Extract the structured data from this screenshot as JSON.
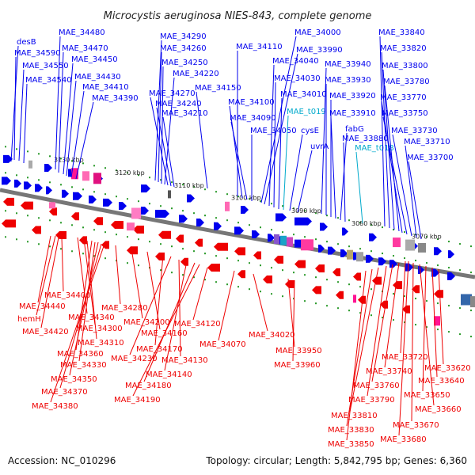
{
  "title": "Microcystis aeruginosa NIES-843, complete genome",
  "accession": "Accession: NC_010296",
  "topology": "Topology: circular; Length: 5,842,795 bp; Genes: 6,360",
  "colors": {
    "forward": "#0000ee",
    "reverse": "#ee0000",
    "rna": "#00aacc",
    "backbone": "#777777",
    "dots": "#2a9a2a"
  },
  "scale_ticks": [
    "3130 kbp",
    "3120 kbp",
    "3110 kbp",
    "3100 kbp",
    "3090 kbp",
    "3080 kbp",
    "3070 kbp"
  ],
  "forward_labels": [
    {
      "text": "desB",
      "color": "forward"
    },
    {
      "text": "MAE_34590",
      "color": "forward"
    },
    {
      "text": "MAE_34550",
      "color": "forward"
    },
    {
      "text": "MAE_34540",
      "color": "forward"
    },
    {
      "text": "MAE_34480",
      "color": "forward"
    },
    {
      "text": "MAE_34470",
      "color": "forward"
    },
    {
      "text": "MAE_34450",
      "color": "forward"
    },
    {
      "text": "MAE_34430",
      "color": "forward"
    },
    {
      "text": "MAE_34410",
      "color": "forward"
    },
    {
      "text": "MAE_34390",
      "color": "forward"
    },
    {
      "text": "MAE_34290",
      "color": "forward"
    },
    {
      "text": "MAE_34260",
      "color": "forward"
    },
    {
      "text": "MAE_34250",
      "color": "forward"
    },
    {
      "text": "MAE_34220",
      "color": "forward"
    },
    {
      "text": "MAE_34270",
      "color": "forward"
    },
    {
      "text": "MAE_34240",
      "color": "forward"
    },
    {
      "text": "MAE_34210",
      "color": "forward"
    },
    {
      "text": "MAE_34150",
      "color": "forward"
    },
    {
      "text": "MAE_34110",
      "color": "forward"
    },
    {
      "text": "MAE_34100",
      "color": "forward"
    },
    {
      "text": "MAE_34090",
      "color": "forward"
    },
    {
      "text": "MAE_34050",
      "color": "forward"
    },
    {
      "text": "MAE_34000",
      "color": "forward"
    },
    {
      "text": "MAE_33990",
      "color": "forward"
    },
    {
      "text": "MAE_34040",
      "color": "forward"
    },
    {
      "text": "MAE_34030",
      "color": "forward"
    },
    {
      "text": "MAE_34010",
      "color": "forward"
    },
    {
      "text": "MAE_t019",
      "color": "rna"
    },
    {
      "text": "cysE",
      "color": "forward"
    },
    {
      "text": "uvrA",
      "color": "forward"
    },
    {
      "text": "MAE_33940",
      "color": "forward"
    },
    {
      "text": "MAE_33930",
      "color": "forward"
    },
    {
      "text": "MAE_33920",
      "color": "forward"
    },
    {
      "text": "MAE_33910",
      "color": "forward"
    },
    {
      "text": "fabG",
      "color": "forward"
    },
    {
      "text": "MAE_33880",
      "color": "forward"
    },
    {
      "text": "MAE_t018",
      "color": "rna"
    },
    {
      "text": "MAE_33840",
      "color": "forward"
    },
    {
      "text": "MAE_33820",
      "color": "forward"
    },
    {
      "text": "MAE_33800",
      "color": "forward"
    },
    {
      "text": "MAE_33780",
      "color": "forward"
    },
    {
      "text": "MAE_33770",
      "color": "forward"
    },
    {
      "text": "MAE_33750",
      "color": "forward"
    },
    {
      "text": "MAE_33730",
      "color": "forward"
    },
    {
      "text": "MAE_33710",
      "color": "forward"
    },
    {
      "text": "MAE_33700",
      "color": "forward"
    }
  ],
  "reverse_labels": [
    {
      "text": "MAE_34400"
    },
    {
      "text": "MAE_34440"
    },
    {
      "text": "hemH"
    },
    {
      "text": "MAE_34420"
    },
    {
      "text": "MAE_34340"
    },
    {
      "text": "MAE_34300"
    },
    {
      "text": "MAE_34310"
    },
    {
      "text": "MAE_34360"
    },
    {
      "text": "MAE_34330"
    },
    {
      "text": "MAE_34350"
    },
    {
      "text": "MAE_34370"
    },
    {
      "text": "MAE_34380"
    },
    {
      "text": "MAE_34280"
    },
    {
      "text": "MAE_34200"
    },
    {
      "text": "MAE_34160"
    },
    {
      "text": "MAE_34170"
    },
    {
      "text": "MAE_34230"
    },
    {
      "text": "MAE_34130"
    },
    {
      "text": "MAE_34140"
    },
    {
      "text": "MAE_34180"
    },
    {
      "text": "MAE_34190"
    },
    {
      "text": "MAE_34120"
    },
    {
      "text": "MAE_34070"
    },
    {
      "text": "MAE_34020"
    },
    {
      "text": "MAE_33950"
    },
    {
      "text": "MAE_33960"
    },
    {
      "text": "MAE_33720"
    },
    {
      "text": "MAE_33740"
    },
    {
      "text": "MAE_33760"
    },
    {
      "text": "MAE_33790"
    },
    {
      "text": "MAE_33810"
    },
    {
      "text": "MAE_33830"
    },
    {
      "text": "MAE_33850"
    },
    {
      "text": "MAE_33620"
    },
    {
      "text": "MAE_33640"
    },
    {
      "text": "MAE_33650"
    },
    {
      "text": "MAE_33660"
    },
    {
      "text": "MAE_33670"
    },
    {
      "text": "MAE_33680"
    }
  ]
}
